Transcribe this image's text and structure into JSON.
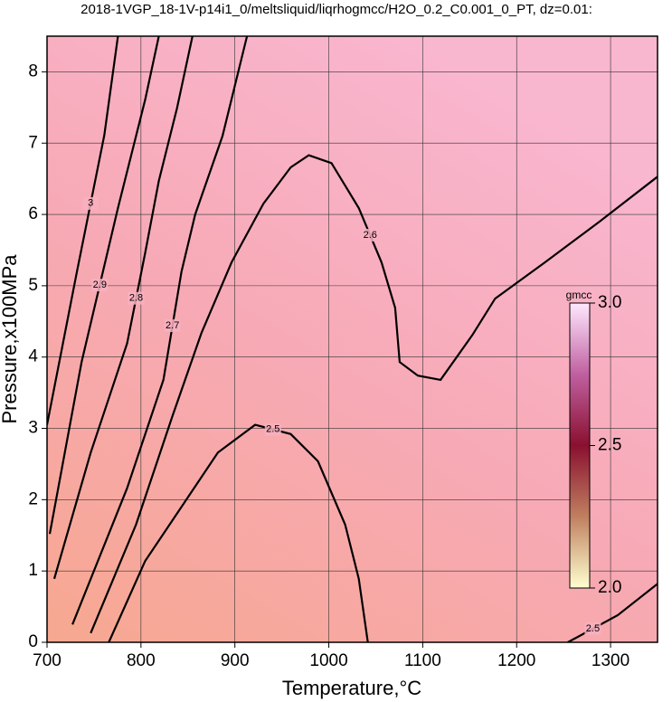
{
  "chart_data": {
    "type": "contour",
    "title": "2018-1VGP_18-1V-p14i1_0/meltsliquid/liqrhogmcc/H2O_0.2_C0.001_0_PT, dz=0.01:",
    "x_label": "Temperature,°C",
    "y_label": "Pressure,x100MPa",
    "xlim": [
      700,
      1350
    ],
    "ylim": [
      0,
      8.5
    ],
    "xticks": [
      700,
      800,
      900,
      1000,
      1100,
      1200,
      1300
    ],
    "yticks": [
      0,
      1,
      2,
      3,
      4,
      5,
      6,
      7,
      8
    ],
    "grid": true,
    "contours": [
      {
        "level": 2.5,
        "x": [
          765.8,
          804.5,
          843.2,
          881.9,
          921.6,
          959.4,
          988.4,
          1017.4,
          1031.9,
          1041.6
        ],
        "y": [
          0,
          1.14,
          1.9,
          2.66,
          3.05,
          2.92,
          2.54,
          1.65,
          0.89,
          0
        ]
      },
      {
        "level": 2.5,
        "x": [
          1254.5,
          1307.7,
          1350
        ],
        "y": [
          0,
          0.38,
          0.82
        ]
      },
      {
        "level": 2.6,
        "x": [
          746.5,
          794.8,
          833.5,
          864.5,
          896.5,
          930.3,
          959.4,
          978.7,
          1002.9,
          1031.9,
          1056.1,
          1070.6,
          1075.5,
          1094.8,
          1119.0,
          1152.9,
          1177.1,
          1230.3,
          1288.4,
          1350
        ],
        "y": [
          0.13,
          1.65,
          3.17,
          4.34,
          5.33,
          6.15,
          6.66,
          6.83,
          6.72,
          6.09,
          5.33,
          4.69,
          3.93,
          3.74,
          3.68,
          4.31,
          4.82,
          5.33,
          5.9,
          6.53
        ]
      },
      {
        "level": 2.7,
        "x": [
          727.1,
          785.2,
          823.9,
          843.2,
          857.7,
          886.8,
          912.9
        ],
        "y": [
          0.25,
          2.16,
          3.68,
          5.2,
          6.0,
          7.1,
          8.5
        ]
      },
      {
        "level": 2.8,
        "x": [
          707.7,
          746.5,
          785.2,
          804.5,
          819.0,
          838.4,
          854.8
        ],
        "y": [
          0.89,
          2.66,
          4.19,
          5.46,
          6.47,
          7.49,
          8.5
        ]
      },
      {
        "level": 2.9,
        "x": [
          702.9,
          736.8,
          775.5,
          804.5,
          819.0
        ],
        "y": [
          1.52,
          3.93,
          6.09,
          7.61,
          8.5
        ]
      },
      {
        "level": 3.0,
        "x": [
          700,
          731.9,
          761.0,
          775.5
        ],
        "y": [
          3.05,
          5.2,
          7.11,
          8.5
        ]
      }
    ],
    "colorbar": {
      "label": "gmcc",
      "lim": [
        2,
        3
      ],
      "ticks": [
        {
          "value": 2,
          "label": "2.0"
        },
        2.5,
        {
          "value": 3,
          "label": "3.0"
        }
      ],
      "colors": [
        "#ffffd0",
        "#c08060",
        "#8a1030",
        "#c060a0",
        "#ffe8ff"
      ]
    }
  }
}
